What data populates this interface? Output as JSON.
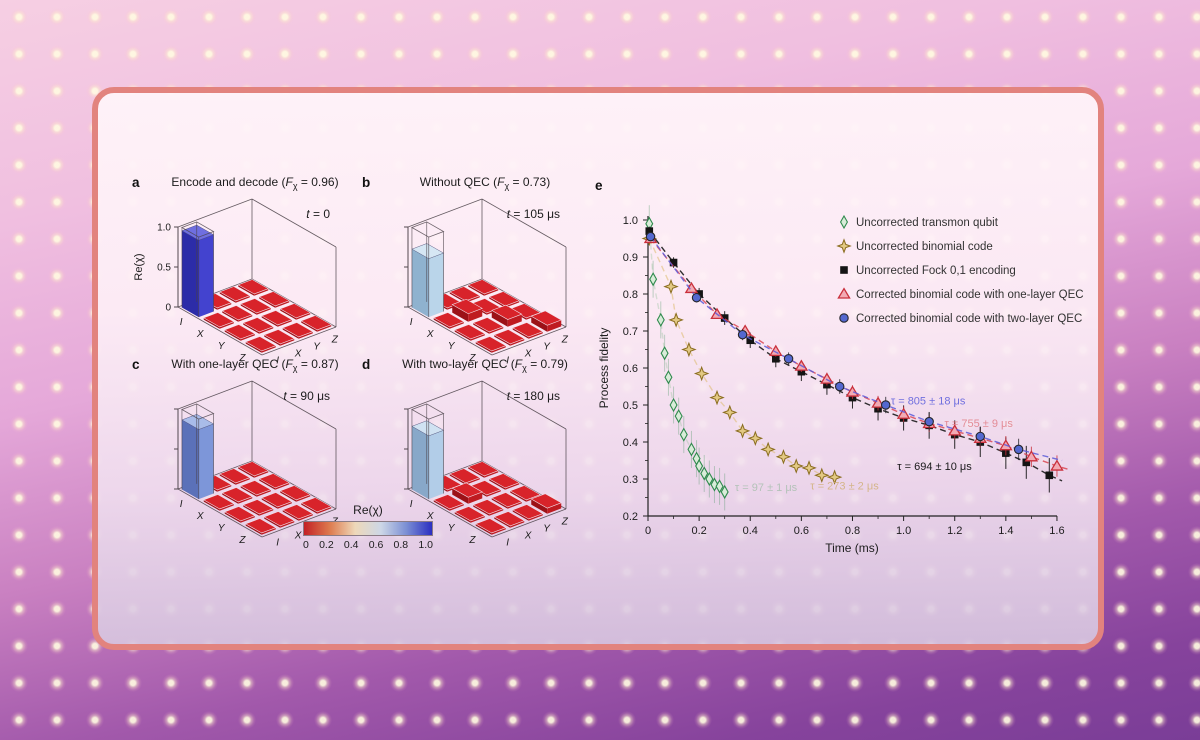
{
  "card": {
    "type": "scientific-figure"
  },
  "axis3d": {
    "zlabel": "Re(χ)",
    "zticks": [
      "1.0",
      "0.5",
      "0"
    ],
    "axes_labels": [
      "I",
      "X",
      "Y",
      "Z"
    ]
  },
  "panels": {
    "a": {
      "label": "a",
      "title_pre": "Encode and decode (",
      "f_sym": "F",
      "f_sub": "χ",
      "f_val": " = 0.96)",
      "t_sym": "t",
      "t_val": " = 0",
      "bar_height": 0.96,
      "bar_colors": {
        "top": "#6f6fe0",
        "left": "#2c2ca8",
        "right": "#4343cf"
      },
      "raised": []
    },
    "b": {
      "label": "b",
      "title_pre": "Without QEC (",
      "f_sym": "F",
      "f_sub": "χ",
      "f_val": " = 0.73)",
      "t_sym": "t",
      "t_val": " = 105 μs",
      "bar_height": 0.73,
      "bar_colors": {
        "top": "#d6e7f4",
        "left": "#8fb2cf",
        "right": "#bad5ea"
      },
      "raised": [
        {
          "cell": [
            1,
            1
          ],
          "h": 0.1
        },
        {
          "cell": [
            2,
            2
          ],
          "h": 0.09
        },
        {
          "cell": [
            3,
            3
          ],
          "h": 0.08
        }
      ]
    },
    "c": {
      "label": "c",
      "title_pre": "With one-layer QEC (",
      "f_sym": "F",
      "f_sub": "χ",
      "f_val": " = 0.87)",
      "t_sym": "t",
      "t_val": " = 90 μs",
      "bar_height": 0.87,
      "bar_colors": {
        "top": "#a9bce9",
        "left": "#5b71b9",
        "right": "#7d96d9"
      },
      "raised": []
    },
    "d": {
      "label": "d",
      "title_pre": "With two-layer QEC (",
      "f_sym": "F",
      "f_sub": "χ",
      "f_val": " = 0.79)",
      "t_sym": "t",
      "t_val": " = 180 μs",
      "bar_height": 0.79,
      "bar_colors": {
        "top": "#d0e2f2",
        "left": "#88a8c9",
        "right": "#b2cde8"
      },
      "raised": [
        {
          "cell": [
            1,
            1
          ],
          "h": 0.08
        },
        {
          "cell": [
            3,
            3
          ],
          "h": 0.07
        }
      ]
    }
  },
  "colorbar": {
    "label": "Re(χ)",
    "ticks": [
      "0",
      "0.2",
      "0.4",
      "0.6",
      "0.8",
      "1.0"
    ],
    "stops": [
      "#c32025",
      "#dd7a4e",
      "#eed8b9",
      "#cdd7e6",
      "#7b8fd4",
      "#2b2fc1"
    ]
  },
  "panel_e_label": "e",
  "chart_data": {
    "type": "scatter",
    "title": "",
    "xlabel": "Time (ms)",
    "ylabel": "Process fidelity",
    "xlim": [
      0,
      1.65
    ],
    "ylim": [
      0.2,
      1.0
    ],
    "grid": false,
    "legend_position": "upper right",
    "xtick_values": [
      0,
      0.2,
      0.4,
      0.6,
      0.8,
      1.0,
      1.2,
      1.4,
      1.6
    ],
    "xtick_labels": [
      "0",
      "0.2",
      "0.4",
      "0.6",
      "0.8",
      "1.0",
      "1.2",
      "1.4",
      "1.6"
    ],
    "ytick_values": [
      0.2,
      0.3,
      0.4,
      0.5,
      0.6,
      0.7,
      0.8,
      0.9,
      1.0
    ],
    "ytick_labels": [
      "0.2",
      "0.3",
      "0.4",
      "0.5",
      "0.6",
      "0.7",
      "0.8",
      "0.9",
      "1.0"
    ],
    "series": [
      {
        "name": "Uncorrected transmon qubit",
        "marker": "thin-diamond",
        "fill": "#d9ecd9",
        "edge": "#2f8a4d",
        "line_color": "#8fbf96",
        "line_opacity": 0.35,
        "err_base": 0.05,
        "err_slope": 0,
        "err_opacity": 0.3,
        "x": [
          0.005,
          0.02,
          0.05,
          0.065,
          0.08,
          0.1,
          0.12,
          0.14,
          0.17,
          0.19,
          0.2,
          0.22,
          0.24,
          0.26,
          0.28,
          0.3
        ],
        "y": [
          0.99,
          0.84,
          0.73,
          0.64,
          0.575,
          0.5,
          0.47,
          0.42,
          0.38,
          0.355,
          0.335,
          0.315,
          0.3,
          0.285,
          0.28,
          0.265
        ],
        "tau": {
          "text": "τ = 97 ± 1 μs",
          "x": 0.34,
          "y": 0.268,
          "color": "#aabfb0",
          "opacity": 0.85
        }
      },
      {
        "name": "Uncorrected binomial code",
        "marker": "star4",
        "fill": "#e3c983",
        "edge": "#8a6d1f",
        "line_color": "#ddba6e",
        "line_opacity": 0.55,
        "err_base": 0.015,
        "err_slope": 0,
        "err_opacity": 0.5,
        "x": [
          0.005,
          0.09,
          0.11,
          0.16,
          0.21,
          0.27,
          0.32,
          0.37,
          0.42,
          0.47,
          0.53,
          0.58,
          0.63,
          0.68,
          0.73
        ],
        "y": [
          0.95,
          0.82,
          0.73,
          0.65,
          0.585,
          0.52,
          0.48,
          0.43,
          0.41,
          0.38,
          0.36,
          0.335,
          0.33,
          0.31,
          0.305
        ],
        "tau": {
          "text": "τ = 273 ± 2 μs",
          "x": 0.635,
          "y": 0.272,
          "color": "#cfae72",
          "opacity": 0.8
        }
      },
      {
        "name": "Uncorrected Fock 0,1 encoding",
        "marker": "square",
        "fill": "#141414",
        "edge": "#141414",
        "line_color": "#1a1a1a",
        "line_opacity": 0.9,
        "err_base": 0.012,
        "err_slope": 0.022,
        "err_opacity": 0.9,
        "line_ext": [
          1.62,
          0.295
        ],
        "x": [
          0.005,
          0.1,
          0.2,
          0.3,
          0.4,
          0.5,
          0.6,
          0.7,
          0.8,
          0.9,
          1.0,
          1.1,
          1.2,
          1.3,
          1.4,
          1.48,
          1.57
        ],
        "y": [
          0.97,
          0.885,
          0.8,
          0.735,
          0.675,
          0.625,
          0.59,
          0.555,
          0.52,
          0.49,
          0.465,
          0.445,
          0.42,
          0.4,
          0.37,
          0.345,
          0.31
        ],
        "tau": {
          "text": "τ = 694 ± 10 μs",
          "x": 0.975,
          "y": 0.325,
          "color": "#1a1a1a",
          "opacity": 1
        }
      },
      {
        "name": "Corrected binomial code with one-layer QEC",
        "marker": "triangle",
        "fill": "#f2aab4",
        "edge": "#c9303c",
        "line_color": "#d94753",
        "line_opacity": 0.85,
        "err_base": 0.008,
        "err_slope": 0.013,
        "err_opacity": 0.8,
        "line_ext": [
          1.65,
          0.325
        ],
        "x": [
          0.01,
          0.17,
          0.27,
          0.38,
          0.5,
          0.6,
          0.7,
          0.8,
          0.9,
          1.0,
          1.1,
          1.2,
          1.3,
          1.4,
          1.5,
          1.6
        ],
        "y": [
          0.95,
          0.815,
          0.745,
          0.7,
          0.645,
          0.605,
          0.57,
          0.535,
          0.505,
          0.475,
          0.45,
          0.43,
          0.41,
          0.39,
          0.36,
          0.335
        ],
        "tau": {
          "text": "τ = 755 ± 9 μs",
          "x": 1.16,
          "y": 0.44,
          "color": "#e2848e",
          "opacity": 0.9
        }
      },
      {
        "name": "Corrected binomial code with two-layer QEC",
        "marker": "circle",
        "fill": "#5468cf",
        "edge": "#26262b",
        "line_color": "#5b5bd8",
        "line_opacity": 0.85,
        "err_base": 0.01,
        "err_slope": 0.013,
        "err_opacity": 0.8,
        "line_ext": [
          1.62,
          0.35
        ],
        "x": [
          0.01,
          0.19,
          0.37,
          0.55,
          0.75,
          0.93,
          1.1,
          1.3,
          1.45
        ],
        "y": [
          0.955,
          0.79,
          0.69,
          0.625,
          0.55,
          0.5,
          0.455,
          0.415,
          0.38
        ],
        "tau": {
          "text": "τ = 805 ± 18 μs",
          "x": 0.95,
          "y": 0.502,
          "color": "#6a6ade",
          "opacity": 0.95
        }
      }
    ]
  }
}
